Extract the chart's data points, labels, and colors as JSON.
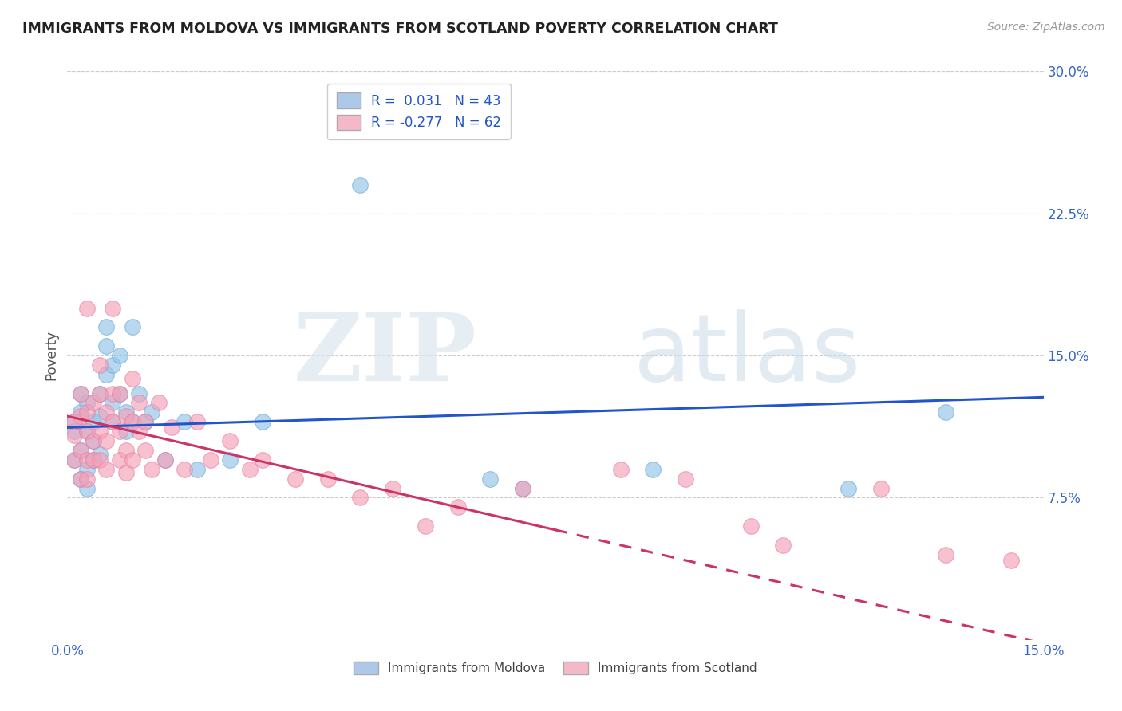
{
  "title": "IMMIGRANTS FROM MOLDOVA VS IMMIGRANTS FROM SCOTLAND POVERTY CORRELATION CHART",
  "source": "Source: ZipAtlas.com",
  "xlim": [
    0.0,
    0.15
  ],
  "ylim": [
    0.0,
    0.3
  ],
  "series1_label": "Immigrants from Moldova",
  "series2_label": "Immigrants from Scotland",
  "R1": 0.031,
  "N1": 43,
  "R2": -0.277,
  "N2": 62,
  "color1": "#93c4e8",
  "color2": "#f4a0b8",
  "color1_edge": "#6aaad8",
  "color2_edge": "#e880a0",
  "line1_color": "#2255cc",
  "line2_color": "#cc3366",
  "legend_color1": "#adc8e8",
  "legend_color2": "#f4b8c8",
  "axis_label_color": "#3366cc",
  "moldova_x": [
    0.001,
    0.001,
    0.001,
    0.002,
    0.002,
    0.002,
    0.002,
    0.003,
    0.003,
    0.003,
    0.003,
    0.004,
    0.004,
    0.004,
    0.005,
    0.005,
    0.005,
    0.006,
    0.006,
    0.006,
    0.007,
    0.007,
    0.007,
    0.008,
    0.008,
    0.009,
    0.009,
    0.01,
    0.01,
    0.011,
    0.012,
    0.013,
    0.015,
    0.018,
    0.02,
    0.025,
    0.03,
    0.045,
    0.065,
    0.07,
    0.09,
    0.12,
    0.135
  ],
  "moldova_y": [
    0.115,
    0.095,
    0.11,
    0.1,
    0.12,
    0.085,
    0.13,
    0.09,
    0.11,
    0.08,
    0.125,
    0.105,
    0.115,
    0.095,
    0.13,
    0.098,
    0.118,
    0.155,
    0.14,
    0.165,
    0.115,
    0.125,
    0.145,
    0.13,
    0.15,
    0.11,
    0.12,
    0.115,
    0.165,
    0.13,
    0.115,
    0.12,
    0.095,
    0.115,
    0.09,
    0.095,
    0.115,
    0.24,
    0.085,
    0.08,
    0.09,
    0.08,
    0.12
  ],
  "scotland_x": [
    0.001,
    0.001,
    0.001,
    0.002,
    0.002,
    0.002,
    0.002,
    0.003,
    0.003,
    0.003,
    0.003,
    0.003,
    0.004,
    0.004,
    0.004,
    0.005,
    0.005,
    0.005,
    0.005,
    0.006,
    0.006,
    0.006,
    0.007,
    0.007,
    0.007,
    0.008,
    0.008,
    0.008,
    0.009,
    0.009,
    0.009,
    0.01,
    0.01,
    0.01,
    0.011,
    0.011,
    0.012,
    0.012,
    0.013,
    0.014,
    0.015,
    0.016,
    0.018,
    0.02,
    0.022,
    0.025,
    0.028,
    0.03,
    0.035,
    0.04,
    0.045,
    0.05,
    0.055,
    0.06,
    0.07,
    0.085,
    0.095,
    0.105,
    0.11,
    0.125,
    0.135,
    0.145
  ],
  "scotland_y": [
    0.108,
    0.095,
    0.115,
    0.13,
    0.1,
    0.118,
    0.085,
    0.095,
    0.12,
    0.11,
    0.085,
    0.175,
    0.105,
    0.125,
    0.095,
    0.11,
    0.13,
    0.095,
    0.145,
    0.105,
    0.12,
    0.09,
    0.13,
    0.115,
    0.175,
    0.11,
    0.13,
    0.095,
    0.118,
    0.1,
    0.088,
    0.115,
    0.138,
    0.095,
    0.125,
    0.11,
    0.1,
    0.115,
    0.09,
    0.125,
    0.095,
    0.112,
    0.09,
    0.115,
    0.095,
    0.105,
    0.09,
    0.095,
    0.085,
    0.085,
    0.075,
    0.08,
    0.06,
    0.07,
    0.08,
    0.09,
    0.085,
    0.06,
    0.05,
    0.08,
    0.045,
    0.042
  ],
  "trend_line1_x0": 0.0,
  "trend_line1_x1": 0.15,
  "trend_line1_y0": 0.112,
  "trend_line1_y1": 0.128,
  "trend_line2_x0": 0.0,
  "trend_line2_x1": 0.075,
  "trend_line2_y0": 0.118,
  "trend_line2_y1": 0.058,
  "trend_line2_dash_x0": 0.075,
  "trend_line2_dash_x1": 0.15,
  "trend_line2_dash_y0": 0.058,
  "trend_line2_dash_y1": -0.002,
  "watermark_zip": "ZIP",
  "watermark_atlas": "atlas"
}
